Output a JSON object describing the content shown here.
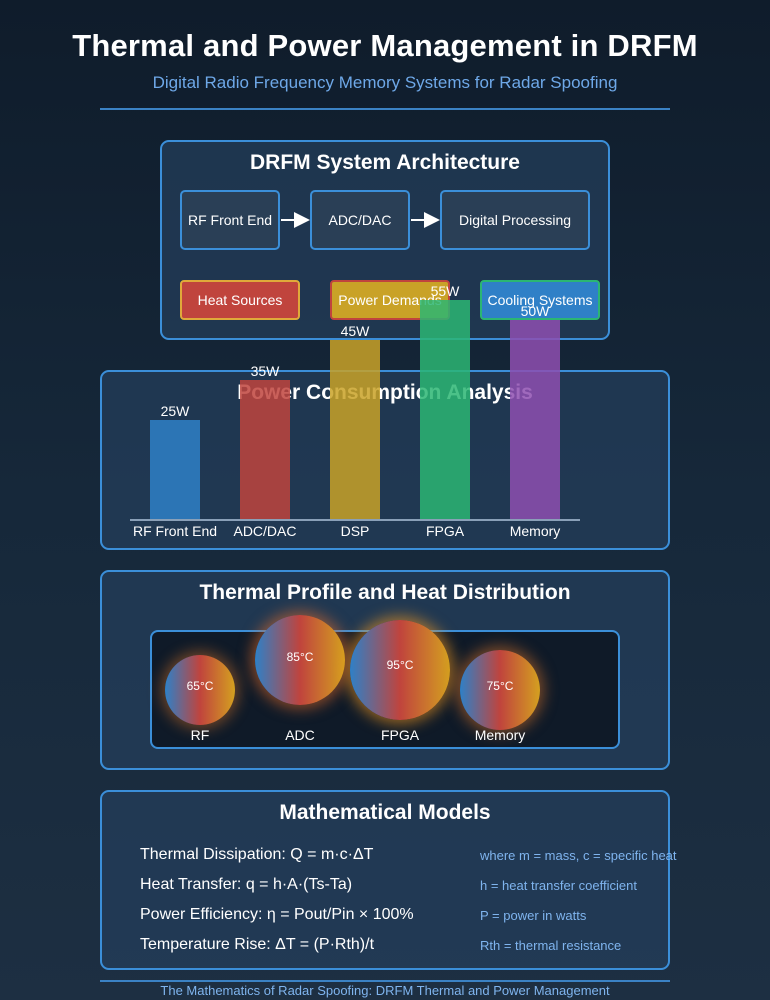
{
  "header": {
    "title": "Thermal and Power Management in DRFM",
    "subtitle": "Digital Radio Frequency Memory Systems for Radar Spoofing"
  },
  "architecture": {
    "title": "DRFM System Architecture",
    "stages": [
      "RF Front End",
      "ADC/DAC",
      "Digital Processing"
    ],
    "categories": [
      {
        "label": "Heat Sources",
        "color": "#c0443d",
        "border": "#e0a93a"
      },
      {
        "label": "Power Demands",
        "color": "#c9a227",
        "border": "#c0443d"
      },
      {
        "label": "Cooling Systems",
        "color": "#2f80c7",
        "border": "#2bb673"
      }
    ]
  },
  "power": {
    "title": "Power Consumption Analysis",
    "unit": "W"
  },
  "chart_data": {
    "type": "bar",
    "title": "Power Consumption Analysis",
    "categories": [
      "RF Front End",
      "ADC/DAC",
      "DSP",
      "FPGA",
      "Memory"
    ],
    "values": [
      25,
      35,
      45,
      55,
      50
    ],
    "value_labels": [
      "25W",
      "35W",
      "45W",
      "55W",
      "50W"
    ],
    "colors": [
      "#2f80c7",
      "#c0443d",
      "#c9a227",
      "#2bb673",
      "#8e4fb0"
    ],
    "ylabel": "",
    "xlabel": "",
    "ylim": [
      0,
      55
    ],
    "grid": false
  },
  "thermal": {
    "title": "Thermal Profile and Heat Distribution",
    "components": [
      {
        "label": "RF",
        "temp": "65°C"
      },
      {
        "label": "ADC",
        "temp": "85°C"
      },
      {
        "label": "FPGA",
        "temp": "95°C"
      },
      {
        "label": "Memory",
        "temp": "75°C"
      }
    ]
  },
  "math": {
    "title": "Mathematical Models",
    "equations": [
      {
        "formula": "Thermal Dissipation: Q = m·c·ΔT",
        "note": "where m = mass, c = specific heat"
      },
      {
        "formula": "Heat Transfer: q = h·A·(Ts-Ta)",
        "note": "h = heat transfer coefficient"
      },
      {
        "formula": "Power Efficiency: η = Pout/Pin × 100%",
        "note": "P = power in watts"
      },
      {
        "formula": "Temperature Rise: ΔT = (P·Rth)/t",
        "note": "Rth = thermal resistance"
      }
    ]
  },
  "footer": {
    "text": "The Mathematics of Radar Spoofing: DRFM Thermal and Power Management"
  }
}
